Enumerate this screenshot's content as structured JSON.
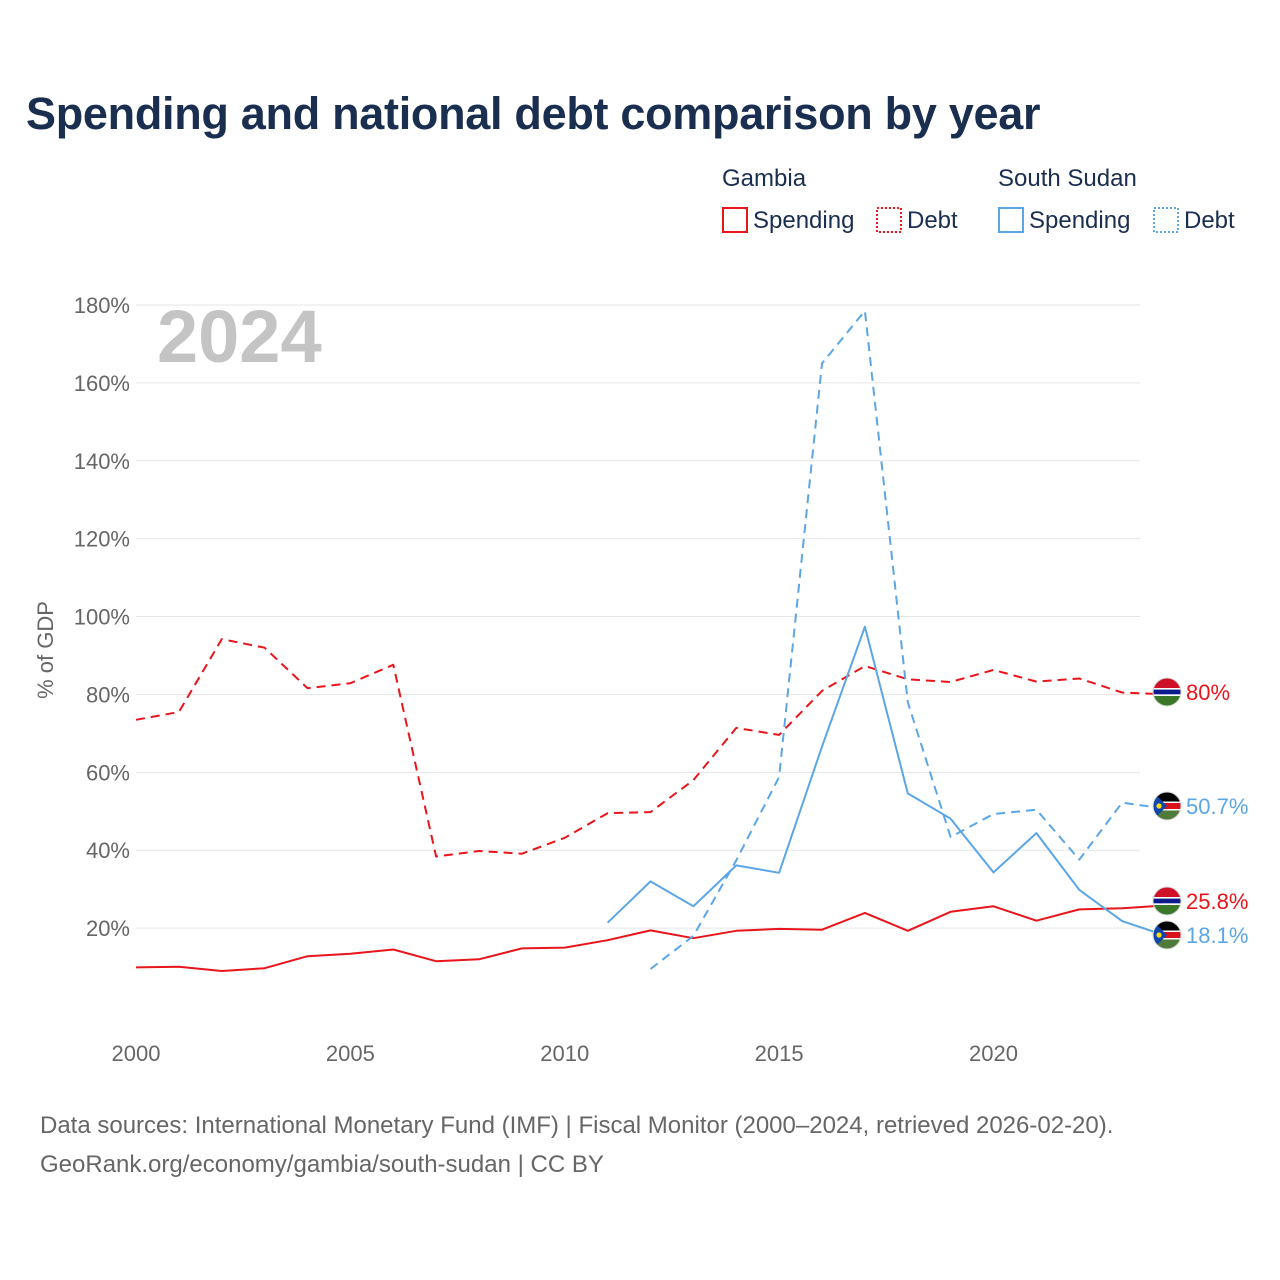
{
  "title": "Spending and national debt comparison by year",
  "legend": {
    "groups": [
      {
        "country": "Gambia",
        "color": "#e8151b",
        "items": [
          "Spending",
          "Debt"
        ]
      },
      {
        "country": "South Sudan",
        "color": "#5ba6e6",
        "items": [
          "Spending",
          "Debt"
        ]
      }
    ]
  },
  "footer": {
    "line1": "Data sources: International Monetary Fund (IMF) | Fiscal Monitor (2000–2024, retrieved 2026-02-20).",
    "line2": "GeoRank.org/economy/gambia/south-sudan | CC BY"
  },
  "chart_data": {
    "type": "line",
    "year_label": "2024",
    "ylabel": "% of GDP",
    "xlim": [
      2000,
      2024
    ],
    "ylim": [
      0,
      180
    ],
    "x_ticks": [
      2000,
      2005,
      2010,
      2015,
      2020
    ],
    "y_ticks": [
      20,
      40,
      60,
      80,
      100,
      120,
      140,
      160,
      180
    ],
    "y_tick_labels": [
      "20%",
      "40%",
      "60%",
      "80%",
      "100%",
      "120%",
      "140%",
      "160%",
      "180%"
    ],
    "grid": true,
    "series": [
      {
        "name": "Gambia Spending",
        "country": "Gambia",
        "metric": "Spending",
        "style": "solid",
        "color": "#e8151b",
        "x": [
          2000,
          2001,
          2002,
          2003,
          2004,
          2005,
          2006,
          2007,
          2008,
          2009,
          2010,
          2011,
          2012,
          2013,
          2014,
          2015,
          2016,
          2017,
          2018,
          2019,
          2020,
          2021,
          2022,
          2023,
          2024
        ],
        "values": [
          9.9,
          10.1,
          9,
          9.7,
          12.8,
          13.4,
          14.5,
          11.5,
          12,
          14.8,
          15,
          16.9,
          19.4,
          17.4,
          19.3,
          19.8,
          19.6,
          23.9,
          19.3,
          24.2,
          25.6,
          21.9,
          24.8,
          25.1,
          25.8
        ],
        "end_label": "25.8%"
      },
      {
        "name": "Gambia Debt",
        "country": "Gambia",
        "metric": "Debt",
        "style": "dashed",
        "color": "#e8151b",
        "x": [
          2000,
          2001,
          2002,
          2003,
          2004,
          2005,
          2006,
          2007,
          2008,
          2009,
          2010,
          2011,
          2012,
          2013,
          2014,
          2015,
          2016,
          2017,
          2018,
          2019,
          2020,
          2021,
          2022,
          2023,
          2024
        ],
        "values": [
          73.5,
          75.5,
          94.2,
          92,
          81.6,
          82.9,
          87.6,
          38.4,
          39.8,
          39.1,
          43.2,
          49.5,
          49.8,
          58,
          71.4,
          69.6,
          80.9,
          87.3,
          83.9,
          83.2,
          86.3,
          83.3,
          84.1,
          80.5,
          80
        ],
        "end_label": "80%"
      },
      {
        "name": "South Sudan Spending",
        "country": "South Sudan",
        "metric": "Spending",
        "style": "solid",
        "color": "#5ba6e6",
        "x": [
          2011,
          2012,
          2013,
          2014,
          2015,
          2016,
          2017,
          2018,
          2019,
          2020,
          2021,
          2022,
          2023,
          2024
        ],
        "values": [
          21.4,
          32,
          25.6,
          36.1,
          34.2,
          66.6,
          97.4,
          54.6,
          48.1,
          34.3,
          44.4,
          29.8,
          21.8,
          18.1
        ],
        "end_label": "18.1%"
      },
      {
        "name": "South Sudan Debt",
        "country": "South Sudan",
        "metric": "Debt",
        "style": "dashed",
        "color": "#5ba6e6",
        "x": [
          2012,
          2013,
          2014,
          2015,
          2016,
          2017,
          2018,
          2019,
          2020,
          2021,
          2022,
          2023,
          2024
        ],
        "values": [
          9.5,
          18,
          37.4,
          58.8,
          165,
          178.5,
          78,
          43.4,
          49.3,
          50.4,
          37.6,
          52.2,
          50.7
        ],
        "end_label": "50.7%"
      }
    ]
  }
}
